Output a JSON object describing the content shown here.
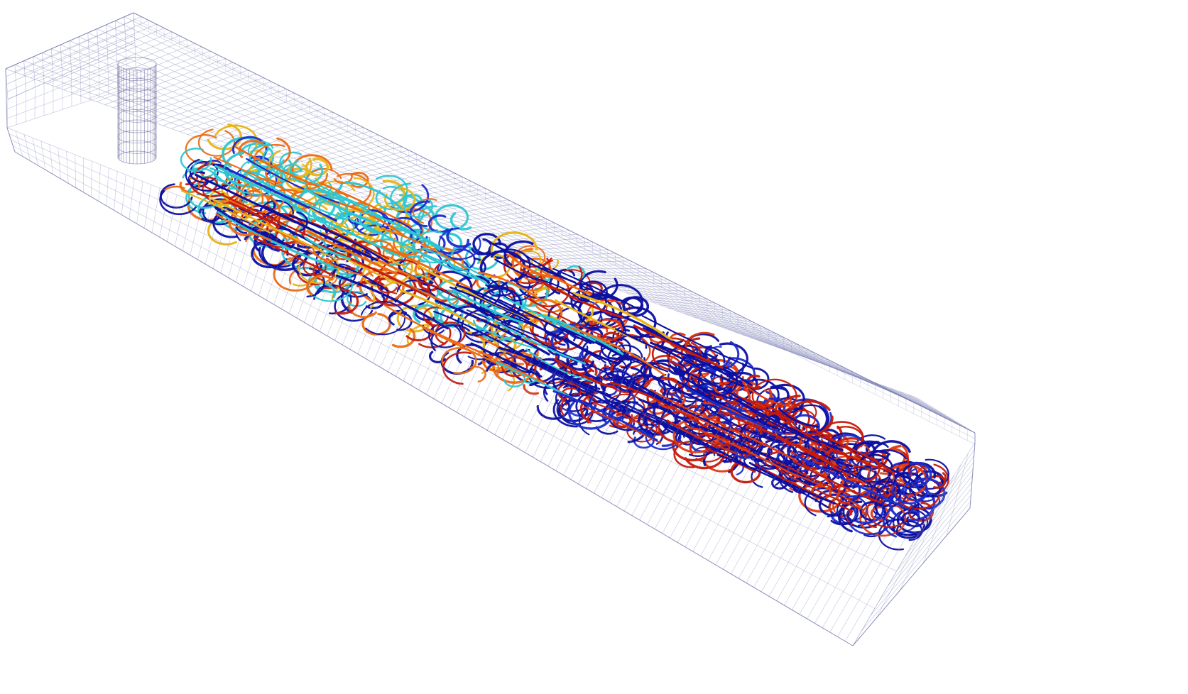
{
  "scene": {
    "background": "#ffffff",
    "mesh_color": "#8c8fc0",
    "cylinder_color": "#5a5c94",
    "streamline_palette": [
      "#0c0fa0",
      "#1a2ccc",
      "#c41a0a",
      "#e0380e",
      "#ee6a10",
      "#e8b414",
      "#2cc6d2",
      "#38a8d8"
    ],
    "tube_color_count": 8
  }
}
